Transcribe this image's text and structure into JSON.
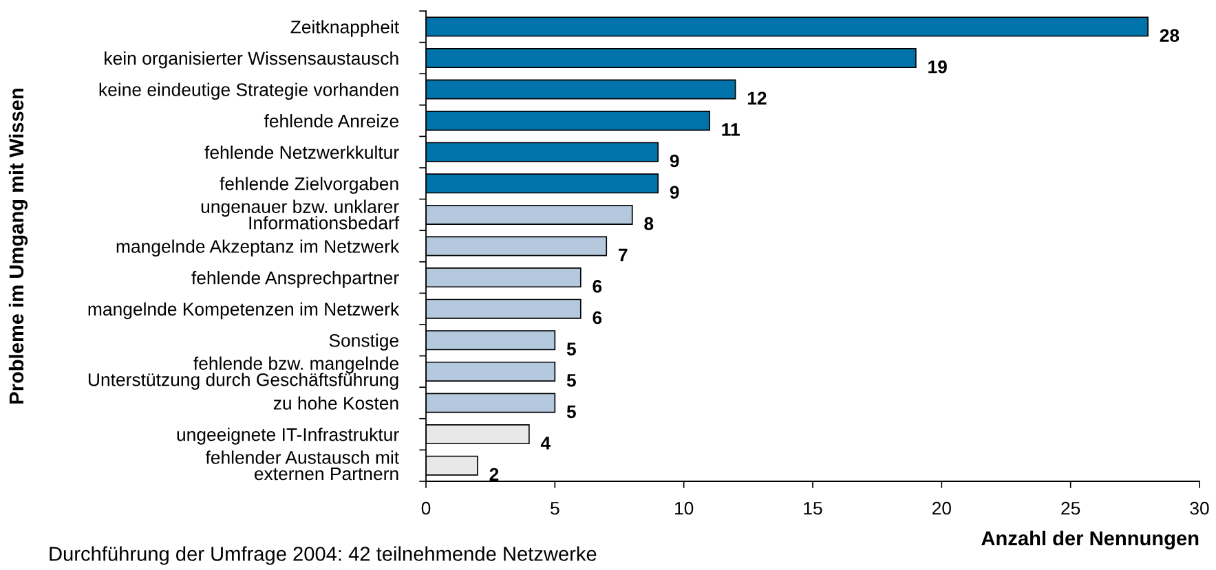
{
  "chart_data": {
    "type": "bar",
    "orientation": "horizontal",
    "categories": [
      "Zeitknappheit",
      "kein organisierter Wissensaustausch",
      "keine eindeutige Strategie vorhanden",
      "fehlende Anreize",
      "fehlende Netzwerkkultur",
      "fehlende Zielvorgaben",
      "ungenauer bzw. unklarer\nInformationsbedarf",
      "mangelnde Akzeptanz im Netzwerk",
      "fehlende Ansprechpartner",
      "mangelnde Kompetenzen im Netzwerk",
      "Sonstige",
      "fehlende bzw. mangelnde\nUnterstützung durch Geschäftsführung",
      "zu hohe Kosten",
      "ungeeignete IT-Infrastruktur",
      "fehlender Austausch mit\nexternen Partnern"
    ],
    "values": [
      28,
      19,
      12,
      11,
      9,
      9,
      8,
      7,
      6,
      6,
      5,
      5,
      5,
      4,
      2
    ],
    "colors": [
      "#0073aa",
      "#0073aa",
      "#0073aa",
      "#0073aa",
      "#0073aa",
      "#0073aa",
      "#b4c9de",
      "#b4c9de",
      "#b4c9de",
      "#b4c9de",
      "#b4c9de",
      "#b4c9de",
      "#b4c9de",
      "#e8e8e8",
      "#e8e8e8"
    ],
    "xlim": [
      0,
      30
    ],
    "xticks": [
      0,
      5,
      10,
      15,
      20,
      25,
      30
    ],
    "xlabel": "Anzahl der Nennungen",
    "ylabel": "Probleme im Umgang mit Wissen",
    "data_labels": true,
    "grid": false,
    "legend": false,
    "annotations": [
      "Durchführung der Umfrage 2004: 42 teilnehmende Netzwerke"
    ]
  }
}
